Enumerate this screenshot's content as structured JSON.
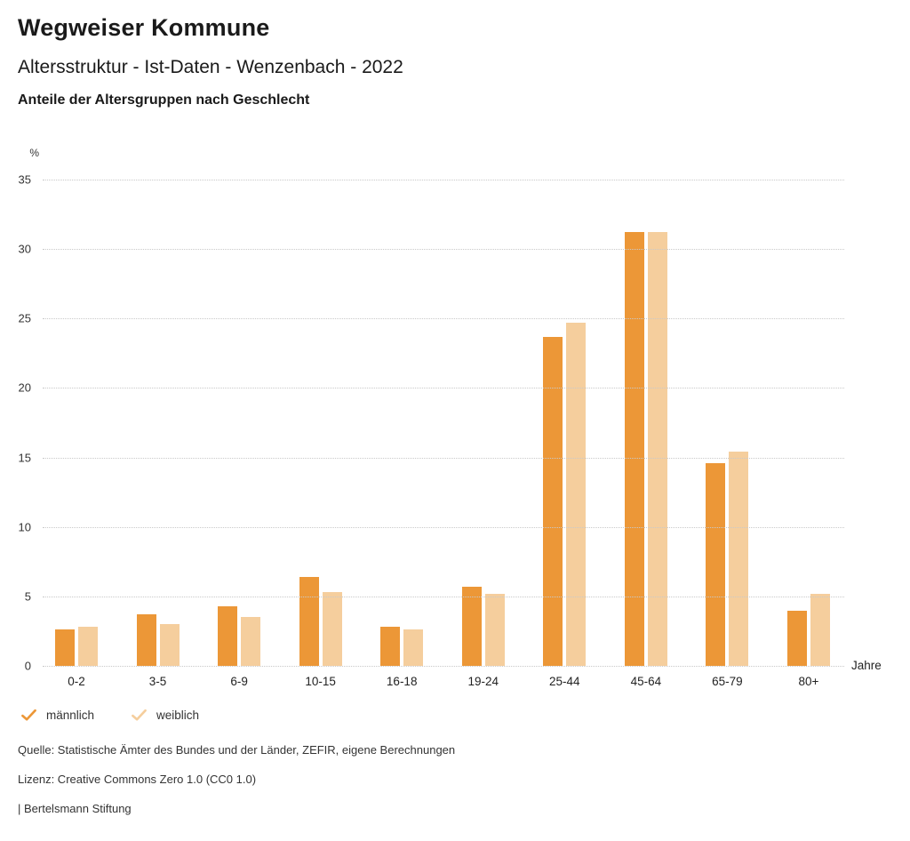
{
  "header": {
    "title": "Wegweiser Kommune",
    "subtitle": "Altersstruktur - Ist-Daten - Wenzenbach - 2022",
    "chart_subtitle": "Anteile der Altersgruppen nach Geschlecht"
  },
  "chart_data": {
    "type": "bar",
    "title": "Anteile der Altersgruppen nach Geschlecht",
    "categories": [
      "0-2",
      "3-5",
      "6-9",
      "10-15",
      "16-18",
      "19-24",
      "25-44",
      "45-64",
      "65-79",
      "80+"
    ],
    "series": [
      {
        "name": "männlich",
        "color": "#EC9737",
        "values": [
          2.6,
          3.7,
          4.3,
          6.4,
          2.8,
          5.7,
          23.7,
          31.2,
          14.6,
          4.0
        ]
      },
      {
        "name": "weiblich",
        "color": "#F5CE9D",
        "values": [
          2.8,
          3.0,
          3.5,
          5.3,
          2.6,
          5.2,
          24.7,
          31.2,
          15.4,
          5.2
        ]
      }
    ],
    "xlabel": "Jahre",
    "ylabel": "%",
    "ylim": [
      0,
      35
    ],
    "ytick_step": 5,
    "grid": "horizontal-dotted",
    "legend_position": "bottom-left"
  },
  "legend": {
    "check_icon": "checkmark-icon"
  },
  "footer": {
    "source": "Quelle: Statistische Ämter des Bundes und der Länder, ZEFIR, eigene Berechnungen",
    "license": "Lizenz: Creative Commons Zero 1.0 (CC0 1.0)",
    "attribution": "| Bertelsmann Stiftung"
  }
}
